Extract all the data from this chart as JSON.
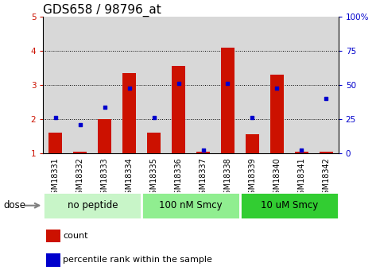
{
  "title": "GDS658 / 98796_at",
  "samples": [
    "GSM18331",
    "GSM18332",
    "GSM18333",
    "GSM18334",
    "GSM18335",
    "GSM18336",
    "GSM18337",
    "GSM18338",
    "GSM18339",
    "GSM18340",
    "GSM18341",
    "GSM18342"
  ],
  "counts": [
    1.6,
    1.05,
    2.0,
    3.35,
    1.6,
    3.55,
    1.05,
    4.1,
    1.55,
    3.3,
    1.05,
    1.05
  ],
  "percentile_ranks": [
    2.05,
    1.85,
    2.35,
    2.9,
    2.05,
    3.05,
    1.1,
    3.05,
    2.05,
    2.9,
    1.1,
    2.6
  ],
  "groups": [
    {
      "label": "no peptide",
      "samples": [
        0,
        1,
        2,
        3
      ],
      "color": "#c8f5c8"
    },
    {
      "label": "100 nM Smcy",
      "samples": [
        4,
        5,
        6,
        7
      ],
      "color": "#90ee90"
    },
    {
      "label": "10 uM Smcy",
      "samples": [
        8,
        9,
        10,
        11
      ],
      "color": "#32cd32"
    }
  ],
  "bar_color": "#cc1100",
  "dot_color": "#0000cc",
  "ylim_left": [
    1,
    5
  ],
  "ylim_right": [
    0,
    100
  ],
  "yticks_left": [
    1,
    2,
    3,
    4,
    5
  ],
  "yticks_right": [
    0,
    25,
    50,
    75,
    100
  ],
  "ytick_labels_left": [
    "1",
    "2",
    "3",
    "4",
    "5"
  ],
  "ytick_labels_right": [
    "0",
    "25",
    "50",
    "75",
    "100%"
  ],
  "grid_color": "#000000",
  "group_label_fontsize": 8.5,
  "tick_label_fontsize": 7,
  "title_fontsize": 11,
  "col_bg_color": "#d8d8d8"
}
